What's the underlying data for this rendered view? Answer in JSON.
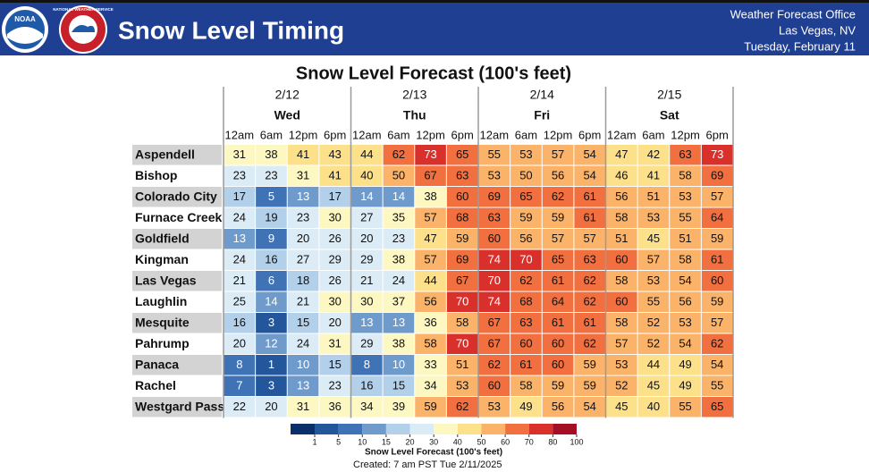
{
  "header": {
    "logos": [
      "NOAA",
      "NATIONAL WEATHER SERVICE"
    ],
    "title": "Snow Level Timing",
    "office": [
      "Weather Forecast Office",
      "Las Vegas, NV",
      "Tuesday, February 11"
    ]
  },
  "table": {
    "title": "Snow Level Forecast (100's feet)",
    "days": [
      {
        "date": "2/12",
        "weekday": "Wed"
      },
      {
        "date": "2/13",
        "weekday": "Thu"
      },
      {
        "date": "2/14",
        "weekday": "Fri"
      },
      {
        "date": "2/15",
        "weekday": "Sat"
      }
    ],
    "hours": [
      "12am",
      "6am",
      "12pm",
      "6pm"
    ],
    "rows": [
      {
        "name": "Aspendell",
        "values": [
          31,
          38,
          41,
          43,
          44,
          62,
          73,
          65,
          55,
          53,
          57,
          54,
          47,
          42,
          63,
          73
        ]
      },
      {
        "name": "Bishop",
        "values": [
          23,
          23,
          31,
          41,
          40,
          50,
          67,
          63,
          53,
          50,
          56,
          54,
          46,
          41,
          58,
          69
        ]
      },
      {
        "name": "Colorado City",
        "values": [
          17,
          5,
          13,
          17,
          14,
          14,
          38,
          60,
          69,
          65,
          62,
          61,
          56,
          51,
          53,
          57
        ]
      },
      {
        "name": "Furnace Creek",
        "values": [
          24,
          19,
          23,
          30,
          27,
          35,
          57,
          68,
          63,
          59,
          59,
          61,
          58,
          53,
          55,
          64
        ]
      },
      {
        "name": "Goldfield",
        "values": [
          13,
          9,
          20,
          26,
          20,
          23,
          47,
          59,
          60,
          56,
          57,
          57,
          51,
          45,
          51,
          59
        ]
      },
      {
        "name": "Kingman",
        "values": [
          24,
          16,
          27,
          29,
          29,
          38,
          57,
          69,
          74,
          70,
          65,
          63,
          60,
          57,
          58,
          61
        ]
      },
      {
        "name": "Las Vegas",
        "values": [
          21,
          6,
          18,
          26,
          21,
          24,
          44,
          67,
          70,
          62,
          61,
          62,
          58,
          53,
          54,
          60
        ]
      },
      {
        "name": "Laughlin",
        "values": [
          25,
          14,
          21,
          30,
          30,
          37,
          56,
          70,
          74,
          68,
          64,
          62,
          60,
          55,
          56,
          59
        ]
      },
      {
        "name": "Mesquite",
        "values": [
          16,
          3,
          15,
          20,
          13,
          13,
          36,
          58,
          67,
          63,
          61,
          61,
          58,
          52,
          53,
          57
        ]
      },
      {
        "name": "Pahrump",
        "values": [
          20,
          12,
          24,
          31,
          29,
          38,
          58,
          70,
          67,
          60,
          60,
          62,
          57,
          52,
          54,
          62
        ]
      },
      {
        "name": "Panaca",
        "values": [
          8,
          1,
          10,
          15,
          8,
          10,
          33,
          51,
          62,
          61,
          60,
          59,
          53,
          44,
          49,
          54
        ]
      },
      {
        "name": "Rachel",
        "values": [
          7,
          3,
          13,
          23,
          16,
          15,
          34,
          53,
          60,
          58,
          59,
          59,
          52,
          45,
          49,
          55
        ]
      },
      {
        "name": "Westgard Pass",
        "values": [
          22,
          20,
          31,
          36,
          34,
          39,
          59,
          62,
          53,
          49,
          56,
          54,
          45,
          40,
          55,
          65
        ]
      }
    ]
  },
  "legend": {
    "title": "Snow Level Forecast (100's feet)",
    "ticks": [
      1,
      5,
      10,
      15,
      20,
      30,
      40,
      50,
      60,
      70,
      80,
      100
    ],
    "colors": [
      "#0b2f6b",
      "#24569c",
      "#3f73b6",
      "#6f9bcc",
      "#b3d0ea",
      "#dcecf6",
      "#fdf7c2",
      "#fde08a",
      "#fbb36a",
      "#f2703f",
      "#d9302c",
      "#a50f25"
    ]
  },
  "footer": "Created: 7 am PST Tue 2/11/2025"
}
